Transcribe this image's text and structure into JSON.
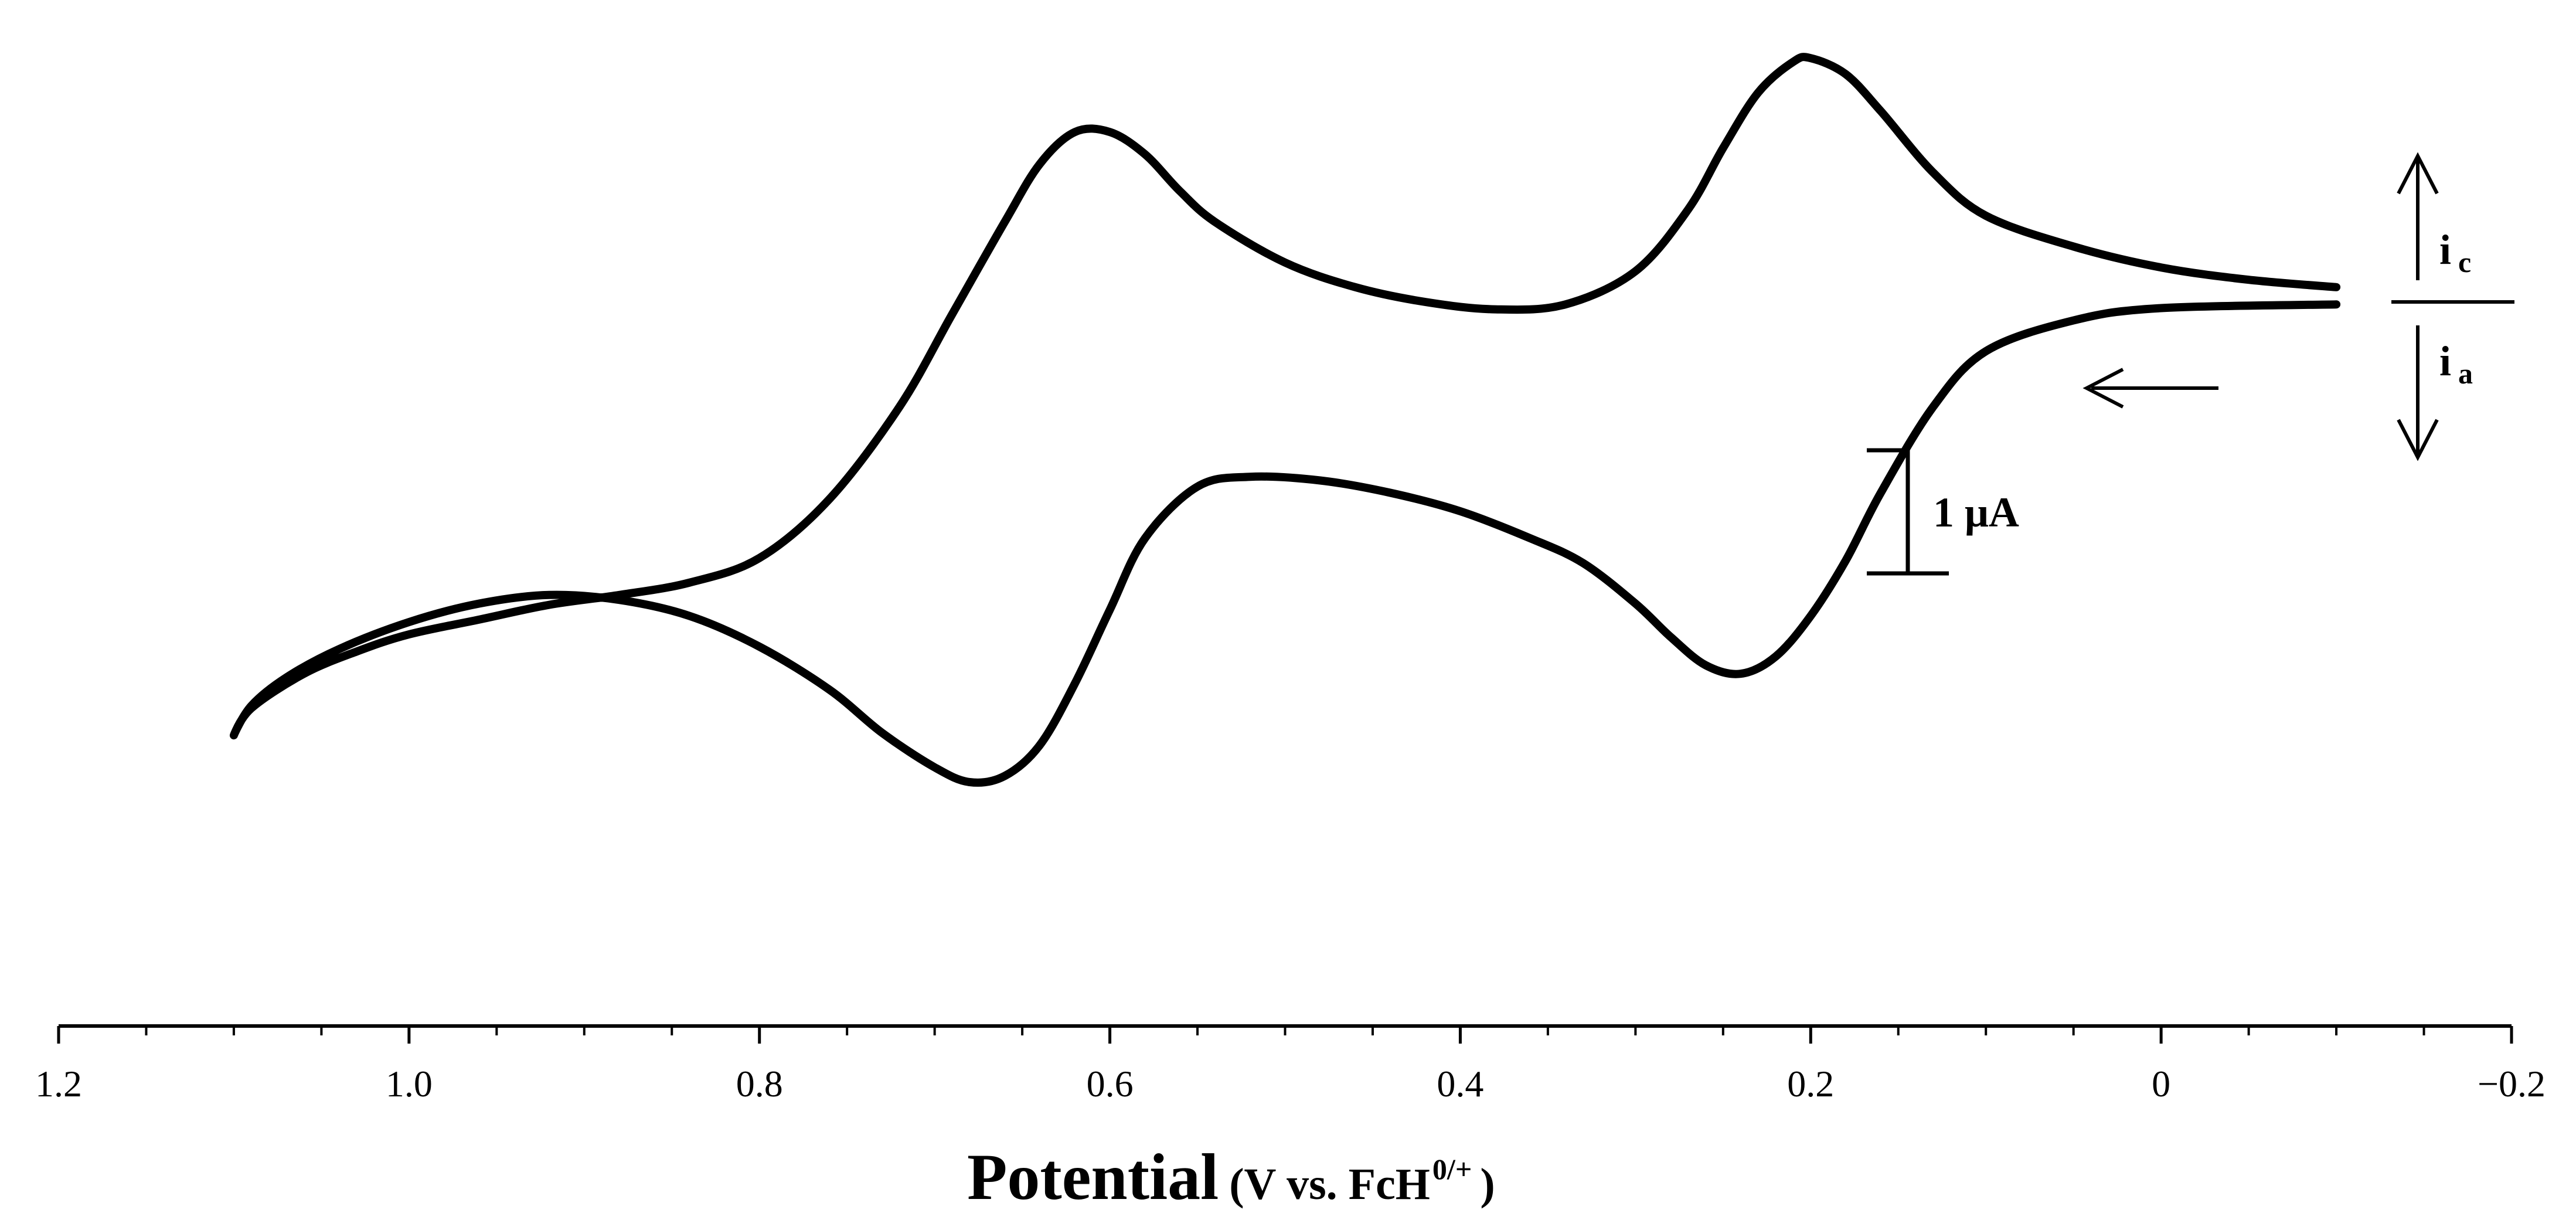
{
  "chart_data": {
    "type": "line",
    "title": "",
    "xlabel": "Potential",
    "xlabel_unit": "(V vs. FcH",
    "xlabel_unit_sup": "0/+",
    "xlabel_unit_close": ")",
    "xlim": [
      1.2,
      -0.2
    ],
    "x_reversed": true,
    "y_axis_shown": false,
    "grid": false,
    "legend": "none",
    "ticks": [
      1.2,
      1.0,
      0.8,
      0.6,
      0.4,
      0.2,
      0,
      -0.2
    ],
    "tick_labels": [
      "1.2",
      "1.0",
      "0.8",
      "0.6",
      "0.4",
      "0.2",
      "0",
      "−0.2"
    ],
    "minor_tick_step": 0.05,
    "y_unit": "µA",
    "ylim": [
      -3.9,
      2.0
    ],
    "series": [
      {
        "segment": "forward-sweep",
        "x": [
          -0.1,
          0.0,
          0.05,
          0.1,
          0.13,
          0.16,
          0.18,
          0.2,
          0.22,
          0.24,
          0.26,
          0.28,
          0.3,
          0.33,
          0.36,
          0.4,
          0.44,
          0.48,
          0.52,
          0.55,
          0.58,
          0.6,
          0.62,
          0.64,
          0.66,
          0.68,
          0.7,
          0.73,
          0.76,
          0.8,
          0.84,
          0.88,
          0.92,
          0.96,
          1.0,
          1.04,
          1.07,
          1.09,
          1.1
        ],
        "y": [
          -0.02,
          -0.05,
          -0.15,
          -0.4,
          -0.85,
          -1.55,
          -2.1,
          -2.55,
          -2.88,
          -3.02,
          -2.95,
          -2.72,
          -2.45,
          -2.12,
          -1.92,
          -1.7,
          -1.55,
          -1.45,
          -1.42,
          -1.5,
          -1.92,
          -2.5,
          -3.1,
          -3.6,
          -3.85,
          -3.9,
          -3.78,
          -3.5,
          -3.15,
          -2.8,
          -2.55,
          -2.42,
          -2.38,
          -2.45,
          -2.6,
          -2.82,
          -3.05,
          -3.28,
          -3.52
        ]
      },
      {
        "segment": "reverse-sweep",
        "x": [
          1.1,
          1.09,
          1.06,
          1.03,
          1.0,
          0.96,
          0.92,
          0.88,
          0.84,
          0.8,
          0.76,
          0.72,
          0.69,
          0.66,
          0.64,
          0.62,
          0.6,
          0.58,
          0.56,
          0.54,
          0.5,
          0.46,
          0.42,
          0.38,
          0.34,
          0.3,
          0.27,
          0.25,
          0.23,
          0.21,
          0.2,
          0.18,
          0.16,
          0.13,
          0.1,
          0.05,
          0.0,
          -0.05,
          -0.1
        ],
        "y": [
          -3.52,
          -3.3,
          -3.02,
          -2.84,
          -2.7,
          -2.58,
          -2.46,
          -2.38,
          -2.28,
          -2.08,
          -1.6,
          -0.85,
          -0.1,
          0.65,
          1.12,
          1.38,
          1.38,
          1.2,
          0.9,
          0.65,
          0.32,
          0.12,
          0.0,
          -0.06,
          -0.02,
          0.25,
          0.75,
          1.25,
          1.7,
          1.95,
          1.98,
          1.85,
          1.55,
          1.05,
          0.7,
          0.45,
          0.28,
          0.18,
          0.12
        ]
      }
    ],
    "annotations": {
      "scale_bar_label": "1 μA",
      "scale_bar_value": 1,
      "sweep_arrow": "left",
      "current_label_c": "i",
      "current_label_c_sub": "c",
      "current_label_a": "i",
      "current_label_a_sub": "a"
    }
  }
}
